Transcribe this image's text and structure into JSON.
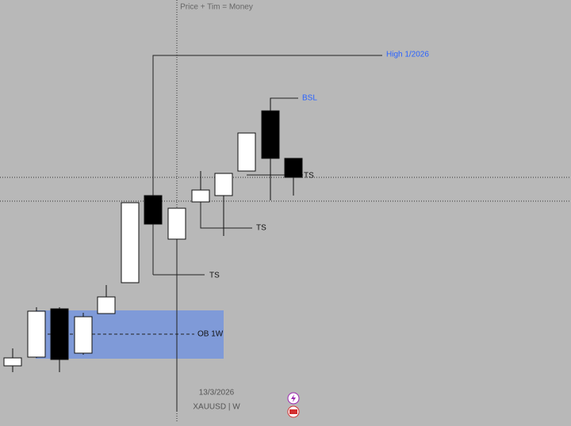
{
  "header": {
    "title": "Price + Tim = Money"
  },
  "annotations": {
    "high": "High 1/2026",
    "bsl": "BSL",
    "ts_top": "TS",
    "ts_mid": "TS",
    "ts_low": "TS",
    "order_block": "OB 1W"
  },
  "footer": {
    "date": "13/3/2026",
    "symbol": "XAUUSD | W"
  }
}
